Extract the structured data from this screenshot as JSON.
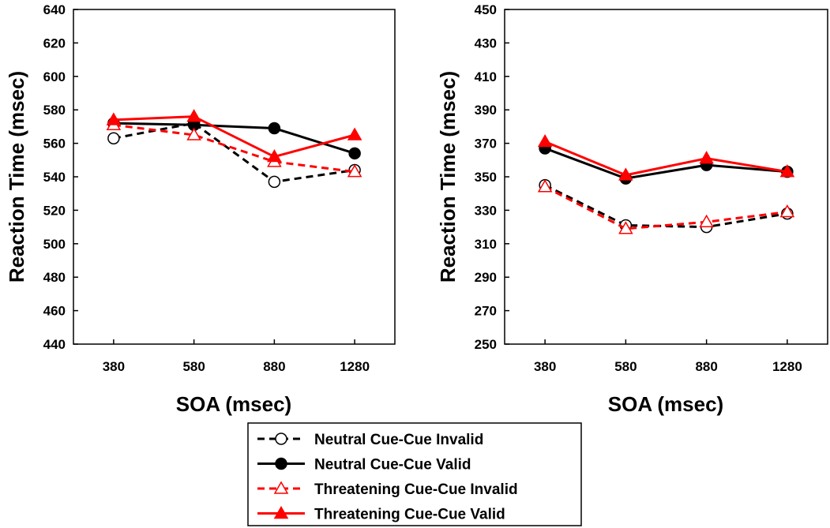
{
  "chart_data": [
    {
      "type": "line",
      "title": "",
      "xlabel": "SOA (msec)",
      "ylabel": "Reaction Time (msec)",
      "categories": [
        "380",
        "580",
        "880",
        "1280"
      ],
      "ylim": [
        440,
        640
      ],
      "yticks": [
        440,
        460,
        480,
        500,
        520,
        540,
        560,
        580,
        600,
        620,
        640
      ],
      "series": [
        {
          "name": "Neutral Cue-Cue Invalid",
          "values": [
            563,
            572,
            537,
            544
          ]
        },
        {
          "name": "Neutral Cue-Cue Valid",
          "values": [
            572,
            571,
            569,
            554
          ]
        },
        {
          "name": "Threatening Cue-Cue Invalid",
          "values": [
            571,
            565,
            549,
            543
          ]
        },
        {
          "name": "Threatening Cue-Cue Valid",
          "values": [
            574,
            576,
            552,
            565
          ]
        }
      ]
    },
    {
      "type": "line",
      "title": "",
      "xlabel": "SOA (msec)",
      "ylabel": "Reaction Time (msec)",
      "categories": [
        "380",
        "580",
        "880",
        "1280"
      ],
      "ylim": [
        250,
        450
      ],
      "yticks": [
        250,
        270,
        290,
        310,
        330,
        350,
        370,
        390,
        410,
        430,
        450
      ],
      "series": [
        {
          "name": "Neutral Cue-Cue Invalid",
          "values": [
            345,
            321,
            320,
            328
          ]
        },
        {
          "name": "Neutral Cue-Cue Valid",
          "values": [
            367,
            349,
            357,
            353
          ]
        },
        {
          "name": "Threatening Cue-Cue Invalid",
          "values": [
            344,
            319,
            323,
            329
          ]
        },
        {
          "name": "Threatening Cue-Cue Valid",
          "values": [
            371,
            351,
            361,
            353
          ]
        }
      ]
    }
  ],
  "legend": {
    "entries": [
      {
        "label": "Neutral Cue-Cue Invalid",
        "color": "#000000",
        "dash": true,
        "marker": "circle",
        "filled": false
      },
      {
        "label": "Neutral Cue-Cue Valid",
        "color": "#000000",
        "dash": false,
        "marker": "circle",
        "filled": true
      },
      {
        "label": "Threatening Cue-Cue Invalid",
        "color": "#ff0000",
        "dash": true,
        "marker": "triangle",
        "filled": false
      },
      {
        "label": "Threatening Cue-Cue Valid",
        "color": "#ff0000",
        "dash": false,
        "marker": "triangle",
        "filled": true
      }
    ]
  }
}
